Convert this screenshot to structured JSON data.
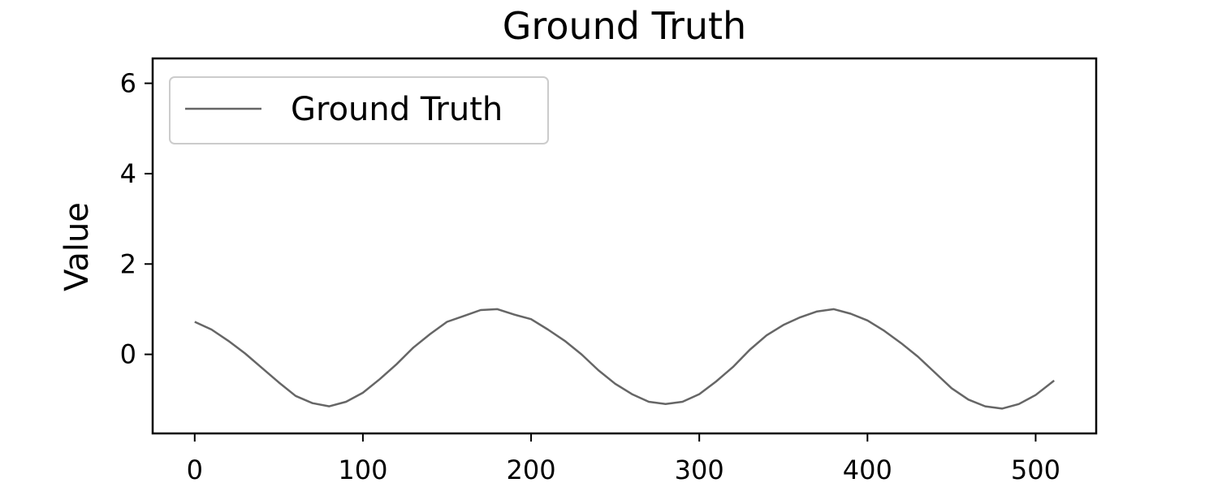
{
  "chart_data": {
    "type": "line",
    "title": "Ground Truth",
    "xlabel": "",
    "ylabel": "Value",
    "xlim": [
      -25,
      536
    ],
    "ylim": [
      -1.75,
      6.55
    ],
    "xticks": [
      0,
      100,
      200,
      300,
      400,
      500
    ],
    "yticks": [
      0,
      2,
      4,
      6
    ],
    "grid": false,
    "legend": {
      "position": "top-left",
      "entries": [
        "Ground Truth"
      ]
    },
    "series": [
      {
        "name": "Ground Truth",
        "color": "#666666",
        "x": [
          0,
          10,
          20,
          30,
          40,
          50,
          60,
          70,
          80,
          90,
          100,
          110,
          120,
          130,
          140,
          150,
          160,
          170,
          180,
          190,
          200,
          210,
          220,
          230,
          240,
          250,
          260,
          270,
          280,
          290,
          300,
          310,
          320,
          330,
          340,
          350,
          360,
          370,
          380,
          390,
          400,
          410,
          420,
          430,
          440,
          450,
          460,
          470,
          480,
          490,
          500,
          511
        ],
        "values": [
          0.72,
          0.55,
          0.3,
          0.02,
          -0.3,
          -0.62,
          -0.92,
          -1.08,
          -1.15,
          -1.05,
          -0.85,
          -0.55,
          -0.22,
          0.15,
          0.45,
          0.72,
          0.85,
          0.98,
          1.0,
          0.88,
          0.78,
          0.55,
          0.3,
          0.0,
          -0.35,
          -0.65,
          -0.88,
          -1.05,
          -1.1,
          -1.05,
          -0.88,
          -0.6,
          -0.28,
          0.1,
          0.42,
          0.65,
          0.82,
          0.95,
          1.0,
          0.9,
          0.75,
          0.52,
          0.25,
          -0.05,
          -0.4,
          -0.75,
          -1.0,
          -1.15,
          -1.2,
          -1.1,
          -0.9,
          -0.58
        ]
      }
    ]
  }
}
